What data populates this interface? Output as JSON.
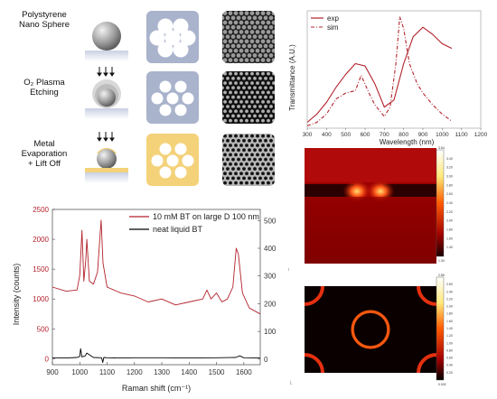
{
  "process": {
    "steps": [
      {
        "label": "Polystyrene\nNano Sphere"
      },
      {
        "label": "O₂ Plasma\nEtching"
      },
      {
        "label": "Metal\nEvaporation\n+ Lift Off"
      }
    ],
    "colors": {
      "substrate": "#a9b3cc",
      "mask": "#a9b3cc",
      "metal": "#f4d27a",
      "sphere": "#8c8c8c"
    }
  },
  "chart_data": [
    {
      "type": "line",
      "title": "",
      "xlabel": "Wavelength (nm)",
      "ylabel": "Transmittance (A.U.)",
      "xlim": [
        300,
        1200
      ],
      "x_ticks": [
        300,
        400,
        500,
        600,
        700,
        800,
        900,
        1000,
        1100,
        1200
      ],
      "legend_position": "top-left",
      "series": [
        {
          "name": "exp",
          "style": "solid",
          "color": "#b2222c",
          "x": [
            300,
            350,
            400,
            450,
            500,
            550,
            600,
            650,
            700,
            750,
            800,
            850,
            900,
            950,
            1000,
            1050
          ],
          "y": [
            0.05,
            0.12,
            0.22,
            0.35,
            0.46,
            0.55,
            0.53,
            0.38,
            0.18,
            0.24,
            0.55,
            0.78,
            0.86,
            0.8,
            0.72,
            0.68
          ]
        },
        {
          "name": "sim",
          "style": "dash-dot",
          "color": "#b2222c",
          "x": [
            300,
            350,
            400,
            450,
            500,
            550,
            580,
            620,
            650,
            700,
            730,
            760,
            780,
            800,
            830,
            870,
            900,
            950,
            1000,
            1050
          ],
          "y": [
            0.02,
            0.05,
            0.12,
            0.25,
            0.3,
            0.32,
            0.45,
            0.3,
            0.2,
            0.1,
            0.18,
            0.55,
            0.95,
            0.85,
            0.55,
            0.38,
            0.3,
            0.2,
            0.12,
            0.06
          ]
        }
      ]
    },
    {
      "type": "line",
      "title": "",
      "xlabel": "Raman shift (cm⁻¹)",
      "ylabel": "Intensity (counts)",
      "xlim": [
        900,
        1660
      ],
      "ylim": [
        -100,
        2500
      ],
      "ylim_right": [
        -20,
        540
      ],
      "x_ticks": [
        900,
        1000,
        1100,
        1200,
        1300,
        1400,
        1500,
        1600
      ],
      "y_ticks": [
        0,
        500,
        1000,
        1500,
        2000,
        2500
      ],
      "y_ticks_right": [
        0,
        100,
        200,
        300,
        400,
        500
      ],
      "legend_position": "top-right",
      "series": [
        {
          "name": "10 mM BT on large D 100 nm",
          "color": "#b2222c",
          "axis": "left",
          "x": [
            900,
            950,
            990,
            1000,
            1008,
            1015,
            1022,
            1026,
            1035,
            1050,
            1065,
            1073,
            1078,
            1085,
            1100,
            1150,
            1200,
            1250,
            1300,
            1350,
            1400,
            1450,
            1465,
            1480,
            1500,
            1520,
            1540,
            1560,
            1572,
            1580,
            1595,
            1620,
            1660
          ],
          "y": [
            1200,
            1130,
            1150,
            1400,
            2150,
            1300,
            1650,
            2000,
            1300,
            1250,
            1450,
            2000,
            2320,
            1600,
            1200,
            1100,
            1050,
            950,
            1000,
            900,
            950,
            1000,
            1150,
            1000,
            1100,
            950,
            1000,
            1200,
            1850,
            1750,
            1100,
            850,
            750
          ]
        },
        {
          "name": "neat liquid BT",
          "color": "#000000",
          "axis": "right",
          "x": [
            900,
            950,
            990,
            1000,
            1003,
            1008,
            1020,
            1026,
            1050,
            1080,
            1084,
            1088,
            1100,
            1150,
            1200,
            1300,
            1400,
            1500,
            1570,
            1585,
            1600,
            1660
          ],
          "y": [
            5,
            4,
            6,
            10,
            38,
            8,
            12,
            22,
            6,
            5,
            -12,
            6,
            5,
            4,
            5,
            5,
            4,
            5,
            6,
            12,
            5,
            4
          ]
        }
      ]
    }
  ],
  "colormaps": {
    "top": {
      "max": "3.54",
      "min": "1.30",
      "ticks": [
        "3.54",
        "3.40",
        "3.20",
        "3.00",
        "2.80",
        "2.60",
        "2.40",
        "2.20",
        "2.00",
        "1.80",
        "1.60",
        "1.40",
        "1.30"
      ]
    },
    "bottom": {
      "max": "2.85",
      "min": "0.002",
      "ticks": [
        "2.85",
        "2.60",
        "2.40",
        "2.20",
        "2.00",
        "1.80",
        "1.60",
        "1.40",
        "1.20",
        "1.00",
        "0.80",
        "0.60",
        "0.40",
        "0.20",
        "0.002"
      ]
    }
  }
}
